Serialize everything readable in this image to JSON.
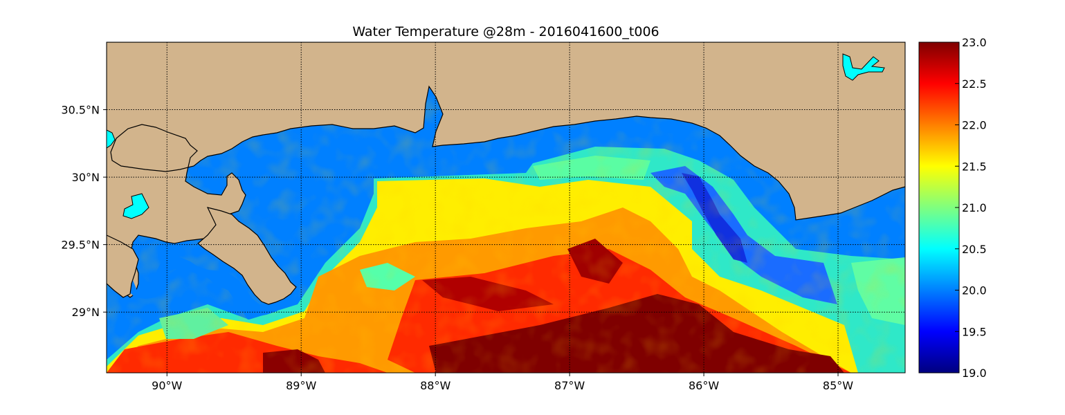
{
  "title": "Water Temperature @28m - 2016041600_t006",
  "map": {
    "lon_range": [
      -90.45,
      -84.5
    ],
    "lat_range": [
      28.55,
      31.0
    ],
    "lon_ticks": [
      {
        "value": -90,
        "label": "90°W"
      },
      {
        "value": -89,
        "label": "89°W"
      },
      {
        "value": -88,
        "label": "88°W"
      },
      {
        "value": -87,
        "label": "87°W"
      },
      {
        "value": -86,
        "label": "86°W"
      },
      {
        "value": -85,
        "label": "85°W"
      }
    ],
    "lat_ticks": [
      {
        "value": 30.5,
        "label": "30.5°N"
      },
      {
        "value": 30.0,
        "label": "30°N"
      },
      {
        "value": 29.5,
        "label": "29.5°N"
      },
      {
        "value": 29.0,
        "label": "29°N"
      }
    ],
    "grid": true,
    "colors": {
      "land": "#d2b48c",
      "no_data_water": "#0080ff",
      "inland_lake": "#00ffff",
      "coast": "#000000"
    }
  },
  "colorbar": {
    "min": 19.0,
    "max": 23.0,
    "ticks": [
      {
        "value": 23.0,
        "label": "23.0"
      },
      {
        "value": 22.5,
        "label": "22.5"
      },
      {
        "value": 22.0,
        "label": "22.0"
      },
      {
        "value": 21.5,
        "label": "21.5"
      },
      {
        "value": 21.0,
        "label": "21.0"
      },
      {
        "value": 20.5,
        "label": "20.5"
      },
      {
        "value": 20.0,
        "label": "20.0"
      },
      {
        "value": 19.5,
        "label": "19.5"
      },
      {
        "value": 19.0,
        "label": "19.0"
      }
    ],
    "colormap": "jet"
  }
}
